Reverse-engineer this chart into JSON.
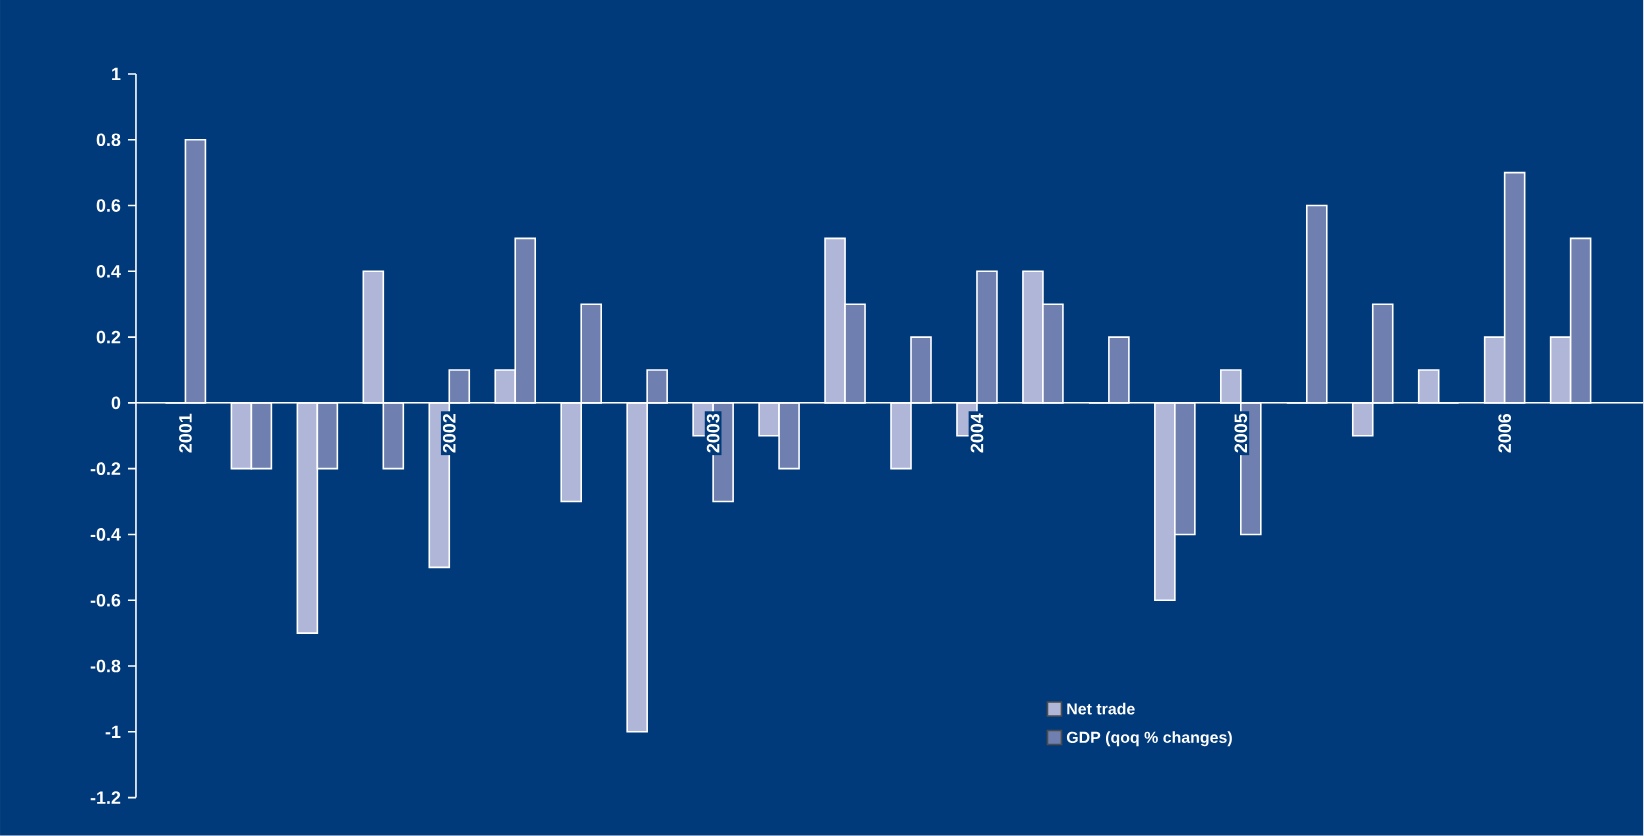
{
  "chart_data": {
    "type": "bar",
    "categories": [
      "2001",
      null,
      null,
      null,
      "2002",
      null,
      null,
      null,
      "2003",
      null,
      null,
      null,
      "2004",
      null,
      null,
      null,
      "2005",
      null,
      null,
      null,
      "2006",
      null
    ],
    "series": [
      {
        "name": "Net trade",
        "color": "#b0b6d8",
        "values": [
          0,
          -0.2,
          -0.7,
          0.4,
          -0.5,
          0.1,
          -0.3,
          -1,
          -0.1,
          -0.1,
          0.5,
          -0.2,
          -0.1,
          0.4,
          0,
          -0.6,
          0.1,
          0,
          -0.1,
          0.1,
          0.2,
          0.2
        ]
      },
      {
        "name": "GDP (qoq % changes)",
        "color": "#6e7fb0",
        "values": [
          0.8,
          -0.2,
          -0.2,
          -0.2,
          0.1,
          0.5,
          0.3,
          0.1,
          -0.3,
          -0.2,
          0.3,
          0.2,
          0.4,
          0.3,
          0.2,
          -0.4,
          -0.4,
          0.6,
          0.3,
          0,
          0.7,
          0.5
        ]
      }
    ],
    "ylim": [
      -1.2,
      1
    ],
    "yticks": [
      {
        "value": -1.2,
        "label": "-1.2"
      },
      {
        "value": -1,
        "label": "-1"
      },
      {
        "value": -0.8,
        "label": "-0.8"
      },
      {
        "value": -0.6,
        "label": "-0.6"
      },
      {
        "value": -0.4,
        "label": "-0.4"
      },
      {
        "value": -0.2,
        "label": "-0.2"
      },
      {
        "value": 0,
        "label": "0"
      },
      {
        "value": 0.2,
        "label": "0.2"
      },
      {
        "value": 0.4,
        "label": "0.4"
      },
      {
        "value": 0.6,
        "label": "0.6"
      },
      {
        "value": 0.8,
        "label": "0.8"
      },
      {
        "value": 1,
        "label": "1"
      }
    ],
    "grid": false,
    "legend": "bottom right"
  }
}
